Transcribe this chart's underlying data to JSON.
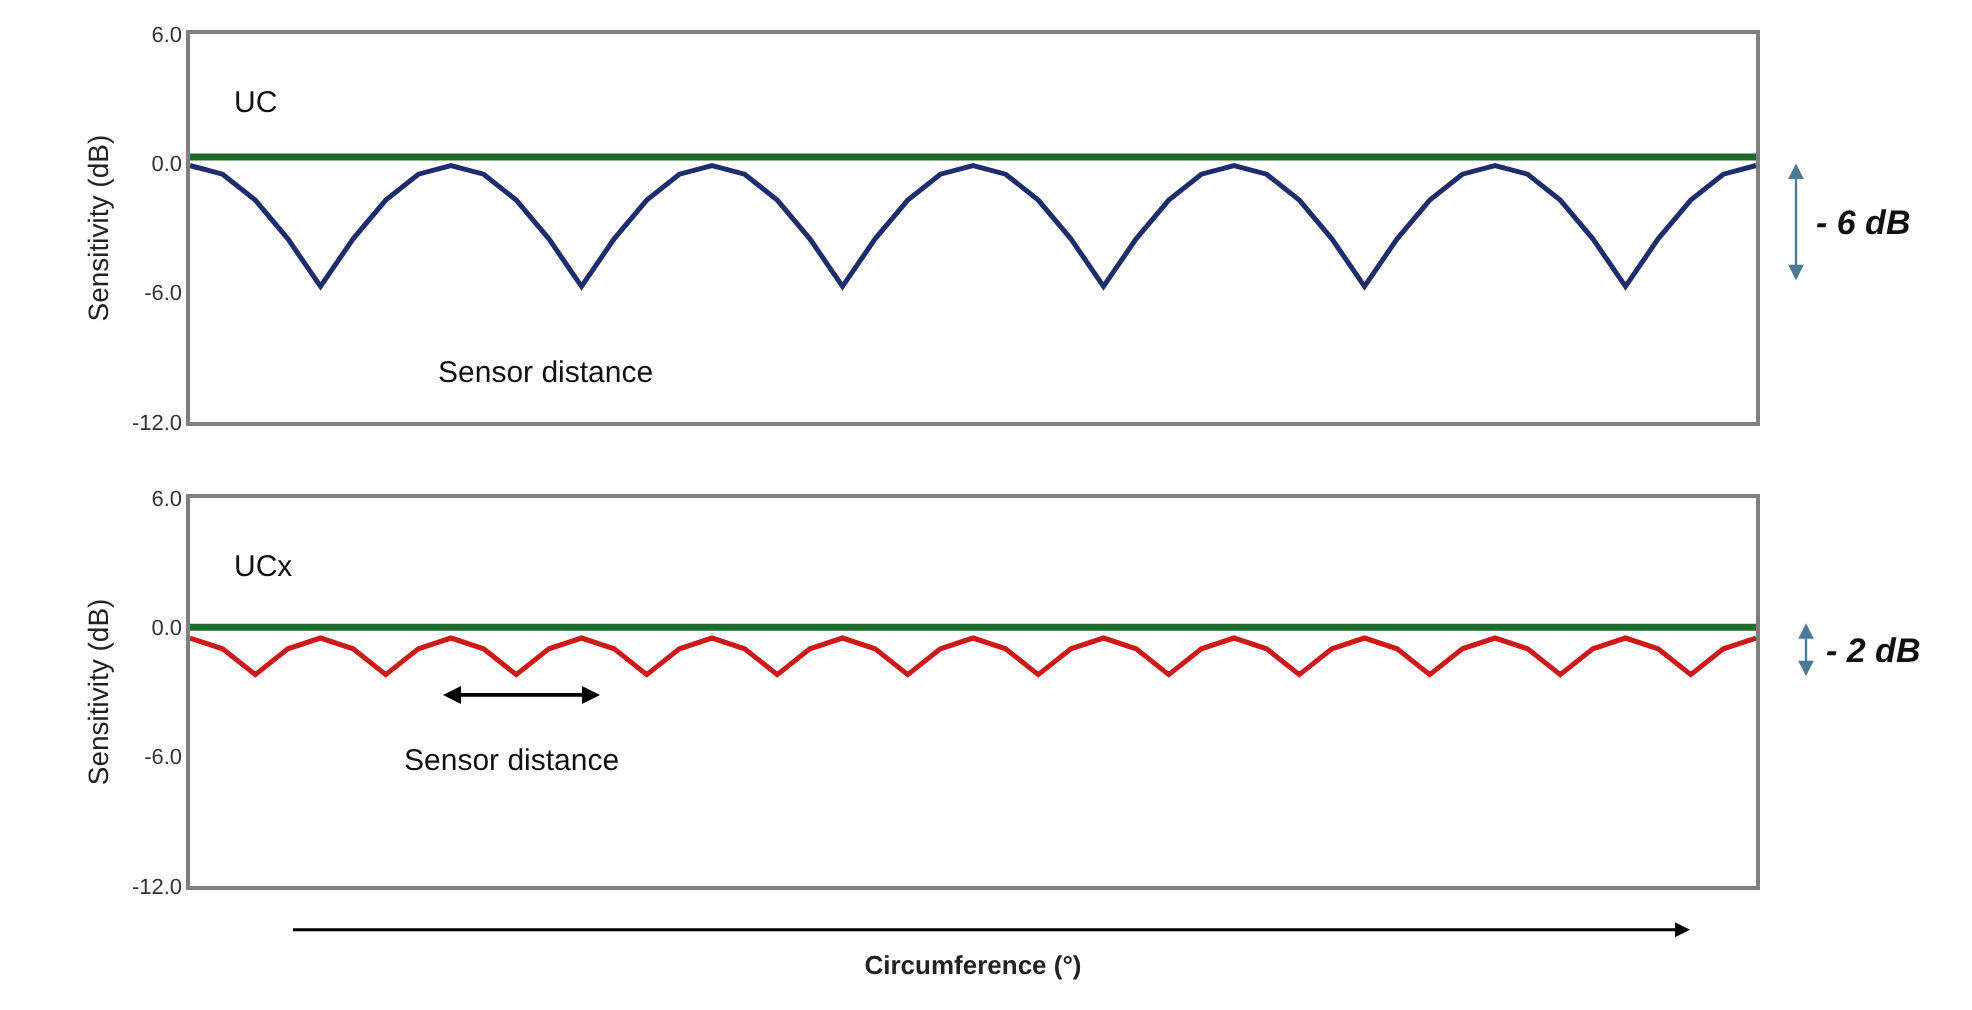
{
  "chart_data": [
    {
      "type": "line",
      "ylabel": "Sensitivity (dB)",
      "categories": [
        null,
        null,
        null,
        null,
        null,
        null,
        null,
        null,
        null,
        null,
        null,
        null,
        null,
        null,
        null,
        null,
        null,
        null,
        null,
        null,
        null,
        null,
        null,
        null,
        null,
        null,
        null,
        null,
        null,
        null,
        null,
        null,
        null,
        null,
        null,
        null,
        null,
        null,
        null,
        null,
        null,
        null,
        null,
        null,
        null,
        null,
        null,
        null,
        null
      ],
      "series": [
        {
          "color": "#1f2d6e",
          "values": [
            -0.1,
            -0.5,
            -1.7,
            -3.5,
            -5.7,
            -3.5,
            -1.7,
            -0.5,
            -0.1,
            -0.5,
            -1.7,
            -3.5,
            -5.7,
            -3.5,
            -1.7,
            -0.5,
            -0.1,
            -0.5,
            -1.7,
            -3.5,
            -5.7,
            -3.5,
            -1.7,
            -0.5,
            -0.1,
            -0.5,
            -1.7,
            -3.5,
            -5.7,
            -3.5,
            -1.7,
            -0.5,
            -0.1,
            -0.5,
            -1.7,
            -3.5,
            -5.7,
            -3.5,
            -1.7,
            -0.5,
            -0.1,
            -0.5,
            -1.7,
            -3.5,
            -5.7,
            -3.5,
            -1.7,
            -0.5,
            -0.1
          ]
        }
      ],
      "ref_lines": [
        {
          "axis": "y",
          "value": 0.3,
          "color": "#1e6b2e"
        }
      ],
      "ylim": [
        -12,
        6
      ],
      "yticks": [
        {
          "value": 6,
          "label": "6.0"
        },
        {
          "value": 0,
          "label": "0.0"
        },
        {
          "value": -6,
          "label": "-6.0"
        },
        {
          "value": -12,
          "label": "-12.0"
        }
      ],
      "tick_labels": "y",
      "annotations": [
        "UC",
        "Sensor distance",
        "- 6 dB"
      ]
    },
    {
      "type": "line",
      "ylabel": "Sensitivity (dB)",
      "xlabel": "Circumference (°)",
      "categories": [
        null,
        null,
        null,
        null,
        null,
        null,
        null,
        null,
        null,
        null,
        null,
        null,
        null,
        null,
        null,
        null,
        null,
        null,
        null,
        null,
        null,
        null,
        null,
        null,
        null,
        null,
        null,
        null,
        null,
        null,
        null,
        null,
        null,
        null,
        null,
        null,
        null,
        null,
        null,
        null,
        null,
        null,
        null,
        null,
        null,
        null,
        null,
        null,
        null
      ],
      "series": [
        {
          "color": "#cc1a1a",
          "values": [
            -0.5,
            -1.0,
            -2.2,
            -1.0,
            -0.5,
            -1.0,
            -2.2,
            -1.0,
            -0.5,
            -1.0,
            -2.2,
            -1.0,
            -0.5,
            -1.0,
            -2.2,
            -1.0,
            -0.5,
            -1.0,
            -2.2,
            -1.0,
            -0.5,
            -1.0,
            -2.2,
            -1.0,
            -0.5,
            -1.0,
            -2.2,
            -1.0,
            -0.5,
            -1.0,
            -2.2,
            -1.0,
            -0.5,
            -1.0,
            -2.2,
            -1.0,
            -0.5,
            -1.0,
            -2.2,
            -1.0,
            -0.5,
            -1.0,
            -2.2,
            -1.0,
            -0.5,
            -1.0,
            -2.2,
            -1.0,
            -0.5
          ]
        }
      ],
      "ref_lines": [
        {
          "axis": "y",
          "value": 0.0,
          "color": "#1e6b2e"
        }
      ],
      "ylim": [
        -12,
        6
      ],
      "yticks": [
        {
          "value": 6,
          "label": "6.0"
        },
        {
          "value": 0,
          "label": "0.0"
        },
        {
          "value": -6,
          "label": "-6.0"
        },
        {
          "value": -12,
          "label": "-12.0"
        }
      ],
      "tick_labels": "y",
      "annotations": [
        "UCx",
        "Sensor distance",
        "- 2 dB"
      ]
    }
  ]
}
